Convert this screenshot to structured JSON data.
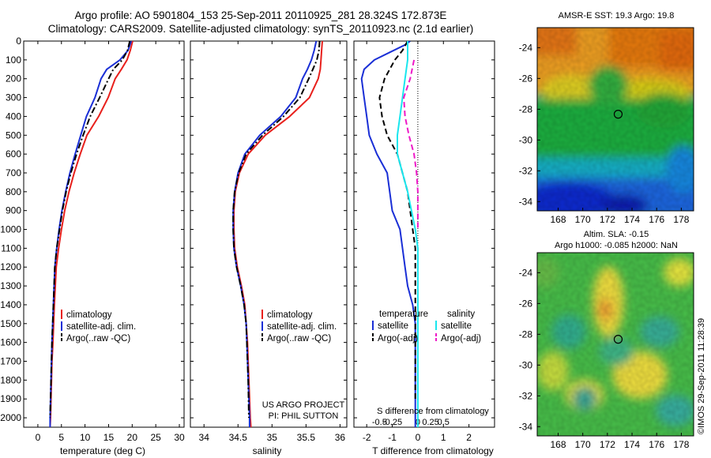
{
  "header": {
    "title_line1": "Argo profile: AO 5901804_153 25-Sep-2011 20110925_281 28.324S 172.873E",
    "title_line2": "Climatology: CARS2009. Satellite-adjusted climatology: synTS_20110923.nc (2.1d earlier)"
  },
  "colors": {
    "climatology": "#e8201c",
    "satellite": "#1a2fd6",
    "argo": "#000000",
    "salinity_satellite": "#19e6ee",
    "salinity_argo": "#ee19c8"
  },
  "chart_data": [
    {
      "type": "line",
      "id": "temperature",
      "xlabel": "temperature (deg C)",
      "ylabel": "",
      "xlim": [
        -3,
        31
      ],
      "ylim": [
        2050,
        0
      ],
      "xticks": [
        0,
        5,
        10,
        15,
        20,
        25,
        30
      ],
      "yticks": [
        0,
        100,
        200,
        300,
        400,
        500,
        600,
        700,
        800,
        900,
        1000,
        1100,
        1200,
        1300,
        1400,
        1500,
        1600,
        1700,
        1800,
        1900,
        2000
      ],
      "legend": [
        "climatology",
        "satellite-adj. clim.",
        "Argo(..raw -QC)"
      ],
      "legend_location": "lower-center",
      "series": [
        {
          "name": "climatology",
          "style": "solid",
          "color": "#e8201c",
          "x": [
            20.1,
            19.6,
            18.9,
            17.7,
            16.4,
            14.9,
            12.9,
            10.4,
            9.0,
            7.7,
            6.6,
            5.7,
            5.0,
            4.4,
            3.9,
            3.5,
            3.2,
            3.0,
            2.9,
            2.8,
            2.7,
            2.6
          ],
          "y": [
            0,
            50,
            100,
            150,
            200,
            300,
            400,
            500,
            600,
            700,
            800,
            900,
            1000,
            1100,
            1200,
            1400,
            1600,
            1700,
            1800,
            1900,
            2000,
            2050
          ]
        },
        {
          "name": "satellite-adj. clim.",
          "style": "solid",
          "color": "#1a2fd6",
          "x": [
            19.8,
            19.1,
            17.4,
            14.6,
            13.4,
            12.1,
            10.3,
            9.1,
            7.9,
            6.8,
            5.9,
            5.1,
            4.5,
            4.0,
            3.6,
            3.3,
            3.0,
            2.9,
            2.8,
            2.7,
            2.6,
            2.6
          ],
          "y": [
            0,
            50,
            100,
            150,
            200,
            300,
            400,
            500,
            600,
            700,
            800,
            900,
            1000,
            1100,
            1200,
            1400,
            1600,
            1700,
            1800,
            1900,
            2000,
            2050
          ]
        },
        {
          "name": "Argo(..raw -QC)",
          "style": "dashdot",
          "color": "#000000",
          "x": [
            19.5,
            19.0,
            17.9,
            16.0,
            15.0,
            13.1,
            11.1,
            9.6,
            8.2,
            7.0,
            6.0,
            5.2,
            4.6,
            4.0,
            3.6,
            3.3,
            3.0,
            2.9,
            2.8,
            2.7,
            2.6
          ],
          "y": [
            0,
            50,
            100,
            150,
            200,
            300,
            400,
            500,
            600,
            700,
            800,
            900,
            1000,
            1100,
            1200,
            1400,
            1600,
            1700,
            1800,
            1900,
            2000
          ]
        }
      ]
    },
    {
      "type": "line",
      "id": "salinity",
      "xlabel": "salinity",
      "ylabel": "",
      "xlim": [
        33.8,
        36.1
      ],
      "ylim": [
        2050,
        0
      ],
      "xticks": [
        34,
        34.5,
        35,
        35.5,
        36
      ],
      "legend": [
        "climatology",
        "satellite-adj. clim.",
        "Argo(..raw -QC)"
      ],
      "legend_location": "lower-center",
      "annotations": [
        "US ARGO PROJECT",
        "PI: PHIL SUTTON"
      ],
      "series": [
        {
          "name": "climatology",
          "style": "solid",
          "color": "#e8201c",
          "x": [
            35.74,
            35.73,
            35.72,
            35.71,
            35.68,
            35.55,
            35.26,
            34.9,
            34.65,
            34.52,
            34.46,
            34.44,
            34.44,
            34.45,
            34.49,
            34.55,
            34.6,
            34.62,
            34.64,
            34.66,
            34.68,
            34.69
          ],
          "y": [
            0,
            50,
            100,
            150,
            200,
            300,
            400,
            500,
            600,
            700,
            800,
            900,
            1000,
            1100,
            1200,
            1300,
            1400,
            1500,
            1600,
            1800,
            2000,
            2050
          ]
        },
        {
          "name": "satellite-adj. clim.",
          "style": "solid",
          "color": "#1a2fd6",
          "x": [
            35.65,
            35.62,
            35.58,
            35.52,
            35.45,
            35.35,
            35.13,
            34.82,
            34.6,
            34.5,
            34.45,
            34.43,
            34.43,
            34.44,
            34.48,
            34.54,
            34.59,
            34.62,
            34.63,
            34.65,
            34.67,
            34.67
          ],
          "y": [
            0,
            50,
            100,
            150,
            200,
            300,
            400,
            500,
            600,
            700,
            800,
            900,
            1000,
            1100,
            1200,
            1300,
            1400,
            1500,
            1600,
            1800,
            2000,
            2050
          ]
        },
        {
          "name": "Argo(..raw -QC)",
          "style": "dashdot",
          "color": "#000000",
          "x": [
            35.7,
            35.69,
            35.66,
            35.6,
            35.54,
            35.41,
            35.17,
            34.86,
            34.62,
            34.51,
            34.45,
            34.43,
            34.43,
            34.44,
            34.48,
            34.54,
            34.59,
            34.62,
            34.63,
            34.65,
            34.66
          ],
          "y": [
            0,
            50,
            100,
            150,
            200,
            300,
            400,
            500,
            600,
            700,
            800,
            900,
            1000,
            1100,
            1200,
            1300,
            1400,
            1500,
            1600,
            1800,
            2000
          ]
        }
      ]
    },
    {
      "type": "line",
      "id": "difference",
      "xlabel": "T difference from climatology",
      "xlabel_top": "S difference from climatology",
      "ylabel": "",
      "xlim": [
        -2.5,
        3.0
      ],
      "ylim": [
        2050,
        0
      ],
      "xticks": [
        -2,
        -1,
        0,
        1,
        2
      ],
      "top_ticks": [
        "-0.5",
        "-0.25",
        "0",
        "0.25",
        "0.5"
      ],
      "zero_line": "dotted",
      "legend_groups": [
        {
          "title": "temperature",
          "entries": [
            "satellite",
            "Argo(-adj)"
          ]
        },
        {
          "title": "salinity",
          "entries": [
            "satellite",
            "Argo(-adj)"
          ]
        }
      ],
      "legend_location": "lower-center",
      "series": [
        {
          "name": "satellite",
          "quantity": "temperature",
          "style": "solid",
          "color": "#1a2fd6",
          "x": [
            -0.3,
            -0.5,
            -1.1,
            -1.7,
            -2.1,
            -2.2,
            -2.1,
            -2.0,
            -1.9,
            -1.6,
            -1.2,
            -1.1,
            -1.0,
            -0.7,
            -0.6,
            -0.5,
            -0.4,
            -0.2,
            -0.1,
            -0.1,
            -0.1,
            -0.1
          ],
          "y": [
            0,
            20,
            60,
            100,
            150,
            200,
            300,
            400,
            500,
            600,
            700,
            800,
            900,
            1000,
            1100,
            1200,
            1300,
            1400,
            1500,
            1700,
            1900,
            2050
          ]
        },
        {
          "name": "Argo(-adj)",
          "quantity": "temperature",
          "style": "dashed",
          "color": "#000000",
          "x": [
            -0.4,
            -0.6,
            -0.9,
            -1.1,
            -1.3,
            -1.5,
            -1.4,
            -1.2,
            -0.8,
            -0.6,
            -0.4,
            -0.3,
            -0.2,
            -0.1,
            -0.1,
            -0.1,
            -0.1,
            -0.1
          ],
          "y": [
            0,
            50,
            100,
            150,
            200,
            300,
            400,
            500,
            600,
            700,
            800,
            900,
            1000,
            1100,
            1300,
            1500,
            1700,
            1900
          ]
        },
        {
          "name": "satellite",
          "quantity": "salinity",
          "style": "solid",
          "color": "#19e6ee",
          "x": [
            -0.4,
            -0.4,
            -0.5,
            -0.6,
            -0.7,
            -0.8,
            -0.8,
            -0.6,
            -0.4,
            -0.25,
            -0.1,
            0.0,
            0.0,
            0.0,
            0.0,
            0.0,
            0.0
          ],
          "y": [
            0,
            100,
            200,
            300,
            400,
            500,
            600,
            700,
            800,
            900,
            1000,
            1100,
            1300,
            1500,
            1700,
            1900,
            2050
          ]
        },
        {
          "name": "Argo(-adj)",
          "quantity": "salinity",
          "style": "dashed",
          "color": "#ee19c8",
          "x": [
            -0.15,
            -0.3,
            -0.55,
            -0.5,
            -0.35,
            -0.15,
            -0.05,
            0.0,
            0.0,
            0.0
          ],
          "y": [
            100,
            200,
            300,
            400,
            500,
            600,
            700,
            800,
            900,
            1000
          ]
        }
      ]
    },
    {
      "type": "heatmap",
      "id": "sst_map",
      "title": "AMSR-E SST: 19.3 Argo: 19.8",
      "xticks": [
        168,
        170,
        172,
        174,
        176,
        178
      ],
      "yticks": [
        -24,
        -26,
        -28,
        -30,
        -32,
        -34
      ],
      "xlim": [
        166.3,
        179.0
      ],
      "ylim": [
        -34.6,
        -22.7
      ],
      "argo_position": {
        "lon": 172.873,
        "lat": -28.324
      }
    },
    {
      "type": "heatmap",
      "id": "sla_map",
      "title_line1": "Altim. SLA: -0.15",
      "title_line2": "Argo h1000: -0.085 h2000: NaN",
      "xticks": [
        168,
        170,
        172,
        174,
        176,
        178
      ],
      "yticks": [
        -24,
        -26,
        -28,
        -30,
        -32,
        -34
      ],
      "xlim": [
        166.3,
        179.0
      ],
      "ylim": [
        -34.6,
        -22.7
      ],
      "argo_position": {
        "lon": 172.873,
        "lat": -28.324
      }
    }
  ],
  "footer": {
    "stamp": "©IMOS 29-Sep-2011 11:28:39"
  }
}
